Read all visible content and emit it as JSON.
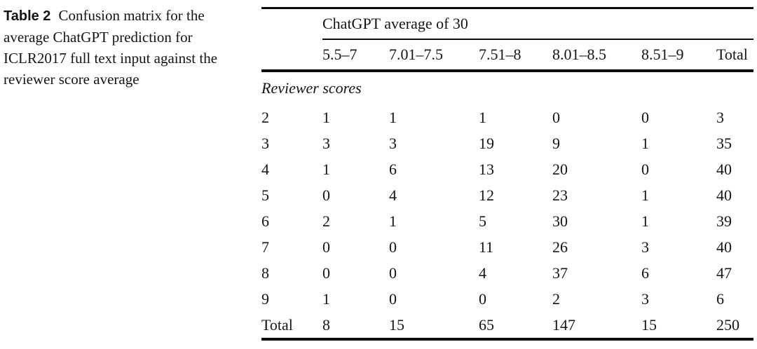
{
  "caption": {
    "label": "Table 2",
    "text": "Confusion matrix for the average ChatGPT prediction for ICLR2017 full text input against the reviewer score average"
  },
  "table": {
    "spanner": "ChatGPT average of 30",
    "columns": [
      "5.5–7",
      "7.01–7.5",
      "7.51–8",
      "8.01–8.5",
      "8.51–9",
      "Total"
    ],
    "row_group_label": "Reviewer scores",
    "rows": [
      {
        "label": "2",
        "values": [
          "1",
          "1",
          "1",
          "0",
          "0",
          "3"
        ]
      },
      {
        "label": "3",
        "values": [
          "3",
          "3",
          "19",
          "9",
          "1",
          "35"
        ]
      },
      {
        "label": "4",
        "values": [
          "1",
          "6",
          "13",
          "20",
          "0",
          "40"
        ]
      },
      {
        "label": "5",
        "values": [
          "0",
          "4",
          "12",
          "23",
          "1",
          "40"
        ]
      },
      {
        "label": "6",
        "values": [
          "2",
          "1",
          "5",
          "30",
          "1",
          "39"
        ]
      },
      {
        "label": "7",
        "values": [
          "0",
          "0",
          "11",
          "26",
          "3",
          "40"
        ]
      },
      {
        "label": "8",
        "values": [
          "0",
          "0",
          "4",
          "37",
          "6",
          "47"
        ]
      },
      {
        "label": "9",
        "values": [
          "1",
          "0",
          "0",
          "2",
          "3",
          "6"
        ]
      },
      {
        "label": "Total",
        "values": [
          "8",
          "15",
          "65",
          "147",
          "15",
          "250"
        ]
      }
    ]
  }
}
